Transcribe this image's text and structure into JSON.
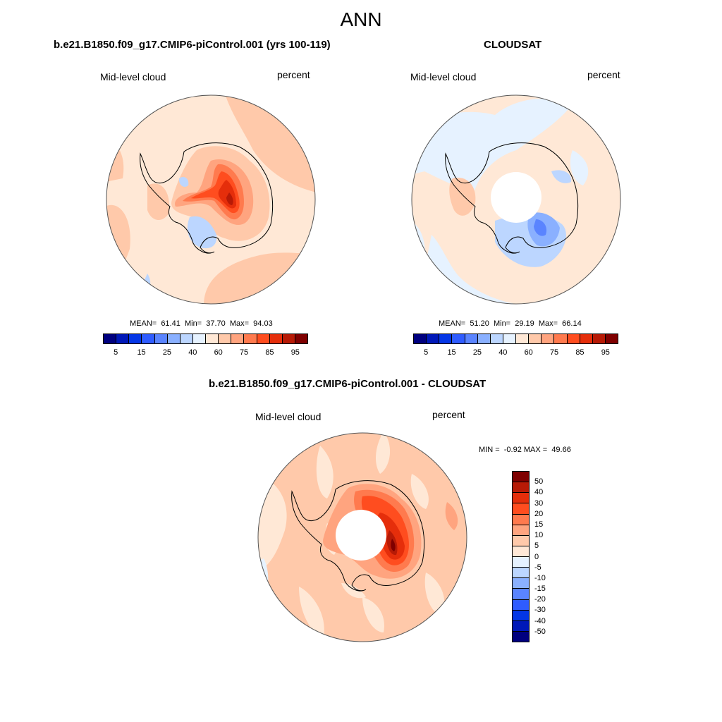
{
  "title": "ANN",
  "colors": {
    "abs": [
      "#00007f",
      "#0018b8",
      "#0436e6",
      "#2f5cff",
      "#5a84ff",
      "#8ab0ff",
      "#bcd6ff",
      "#e6f2ff",
      "#ffe8d6",
      "#ffc9aa",
      "#ffa47f",
      "#ff7a4e",
      "#ff4d1f",
      "#e52e0b",
      "#b71a06",
      "#7f0000"
    ],
    "diff": [
      "#7f0000",
      "#b71a06",
      "#e52e0b",
      "#ff4d1f",
      "#ff7a4e",
      "#ffa47f",
      "#ffc9aa",
      "#ffe8d6",
      "#e6f2ff",
      "#bcd6ff",
      "#8ab0ff",
      "#5a84ff",
      "#2f5cff",
      "#0436e6",
      "#0018b8",
      "#00007f"
    ],
    "coast": "#000000",
    "map_border": "#555555"
  },
  "panels": {
    "model": {
      "title": "b.e21.B1850.f09_g17.CMIP6-piControl.001 (yrs 100-119)",
      "variable": "Mid-level cloud",
      "units": "percent",
      "stats": "MEAN=  61.41  Min=  37.70  Max=  94.03",
      "ticks": [
        "5",
        "15",
        "25",
        "40",
        "60",
        "75",
        "85",
        "95"
      ]
    },
    "obs": {
      "title": "CLOUDSAT",
      "variable": "Mid-level cloud",
      "units": "percent",
      "stats": "MEAN=  51.20  Min=  29.19  Max=  66.14",
      "ticks": [
        "5",
        "15",
        "25",
        "40",
        "60",
        "75",
        "85",
        "95"
      ]
    },
    "diff": {
      "title": "b.e21.B1850.f09_g17.CMIP6-piControl.001 - CLOUDSAT",
      "variable": "Mid-level cloud",
      "units": "percent",
      "stats": "MIN =  -0.92 MAX =  49.66",
      "ticks": [
        "50",
        "40",
        "30",
        "20",
        "15",
        "10",
        "5",
        "0",
        "-5",
        "-10",
        "-15",
        "-20",
        "-30",
        "-40",
        "-50"
      ]
    }
  }
}
